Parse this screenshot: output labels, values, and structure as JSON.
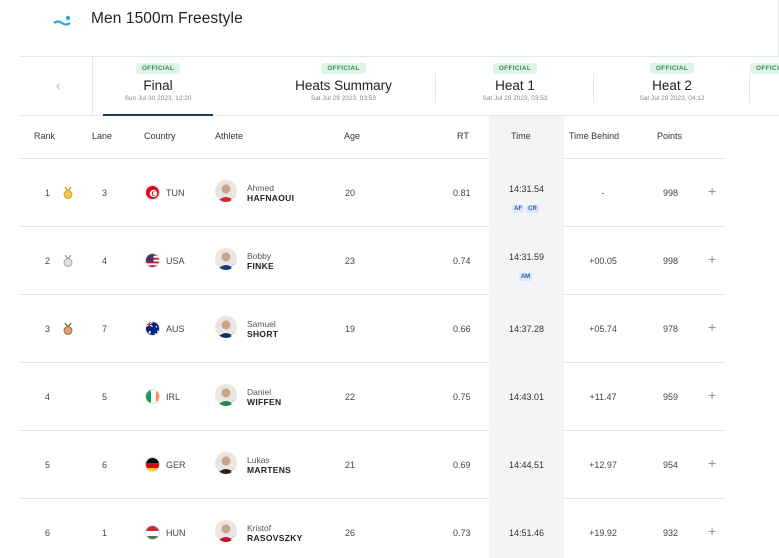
{
  "header": {
    "title": "Men 1500m Freestyle",
    "logo_icon": "swimmer-icon"
  },
  "tabs": [
    {
      "badge": "OFFICIAL",
      "name": "Final",
      "date": "Sun Jul 30 2023, 12:20",
      "active": true
    },
    {
      "badge": "OFFICIAL",
      "name": "Heats Summary",
      "date": "Sat Jul 29 2023, 03:53"
    },
    {
      "badge": "OFFICIAL",
      "name": "Heat 1",
      "date": "Sat Jul 29 2023, 03:53"
    },
    {
      "badge": "OFFICIAL",
      "name": "Heat 2",
      "date": "Sat Jul 29 2023, 04:12"
    },
    {
      "badge": "OFFICIAL"
    }
  ],
  "columns": {
    "rank": "Rank",
    "lane": "Lane",
    "country": "Country",
    "athlete": "Athlete",
    "age": "Age",
    "rt": "RT",
    "time": "Time",
    "behind": "Time Behind",
    "points": "Points"
  },
  "rows": [
    {
      "rank": "1",
      "medal": "gold",
      "lane": "3",
      "country": "TUN",
      "first": "Ahmed",
      "last": "HAFNAOUI",
      "age": "20",
      "rt": "0.81",
      "time": "14:31.54",
      "records": [
        "AF",
        "CR"
      ],
      "behind": "-",
      "points": "998"
    },
    {
      "rank": "2",
      "medal": "silver",
      "lane": "4",
      "country": "USA",
      "first": "Bobby",
      "last": "FINKE",
      "age": "23",
      "rt": "0.74",
      "time": "14:31.59",
      "records": [
        "AM"
      ],
      "behind": "+00.05",
      "points": "998"
    },
    {
      "rank": "3",
      "medal": "bronze",
      "lane": "7",
      "country": "AUS",
      "first": "Samuel",
      "last": "SHORT",
      "age": "19",
      "rt": "0.66",
      "time": "14:37.28",
      "records": [],
      "behind": "+05.74",
      "points": "978"
    },
    {
      "rank": "4",
      "medal": "",
      "lane": "5",
      "country": "IRL",
      "first": "Daniel",
      "last": "WIFFEN",
      "age": "22",
      "rt": "0.75",
      "time": "14:43.01",
      "records": [],
      "behind": "+11.47",
      "points": "959"
    },
    {
      "rank": "5",
      "medal": "",
      "lane": "6",
      "country": "GER",
      "first": "Lukas",
      "last": "MARTENS",
      "age": "21",
      "rt": "0.69",
      "time": "14:44.51",
      "records": [],
      "behind": "+12.97",
      "points": "954"
    },
    {
      "rank": "6",
      "medal": "",
      "lane": "1",
      "country": "HUN",
      "first": "Kristof",
      "last": "RASOVSZKY",
      "age": "26",
      "rt": "0.73",
      "time": "14:51.46",
      "records": [],
      "behind": "+19.92",
      "points": "932"
    }
  ],
  "colors": {
    "accent": "#1e3a5f",
    "badge_bg": "#dff4e6",
    "badge_text": "#3a8a55",
    "record_bg": "#d8e7fb",
    "logo": "#29a8d6"
  }
}
